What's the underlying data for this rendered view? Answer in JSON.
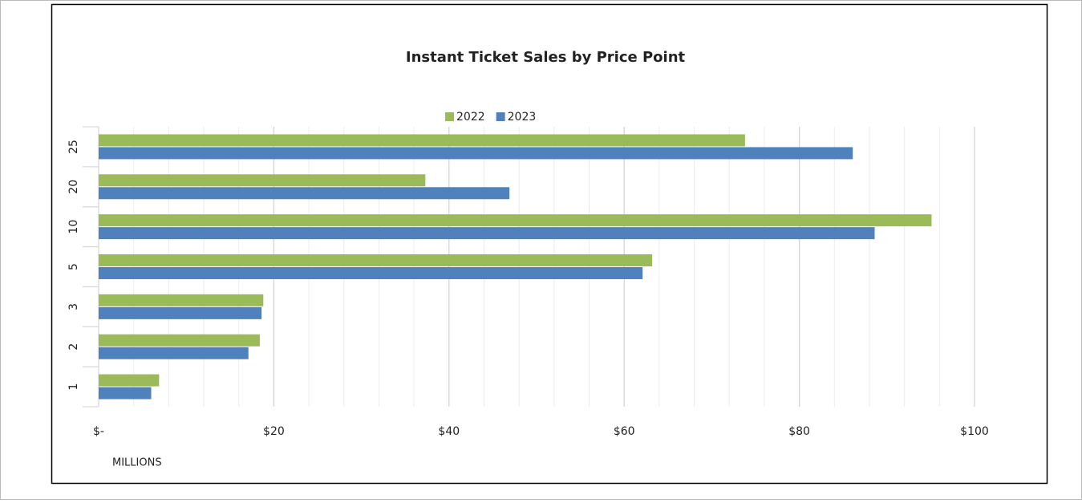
{
  "chart_data": {
    "type": "hbar",
    "title": "Instant Ticket Sales by Price Point",
    "x_label": "MILLIONS",
    "categories": [
      "1",
      "2",
      "3",
      "5",
      "10",
      "20",
      "25"
    ],
    "series": [
      {
        "name": "2022",
        "color": "#9bbb59",
        "values": [
          6.9,
          18.4,
          18.8,
          63.2,
          95.1,
          37.3,
          73.8
        ]
      },
      {
        "name": "2023",
        "color": "#4f81bd",
        "values": [
          6.0,
          17.1,
          18.6,
          62.1,
          88.6,
          46.9,
          86.1
        ]
      }
    ],
    "xlim": [
      0,
      100
    ],
    "xticks": [
      {
        "value": 0,
        "label": "$-"
      },
      {
        "value": 20,
        "label": "$20"
      },
      {
        "value": 40,
        "label": "$40"
      },
      {
        "value": 60,
        "label": "$60"
      },
      {
        "value": 80,
        "label": "$80"
      },
      {
        "value": 100,
        "label": "$100"
      }
    ],
    "xminorticks": [
      4,
      8,
      12,
      16,
      24,
      28,
      32,
      36,
      44,
      48,
      52,
      56,
      64,
      68,
      72,
      76,
      84,
      88,
      92,
      96
    ],
    "grid": true,
    "legend": "top"
  }
}
